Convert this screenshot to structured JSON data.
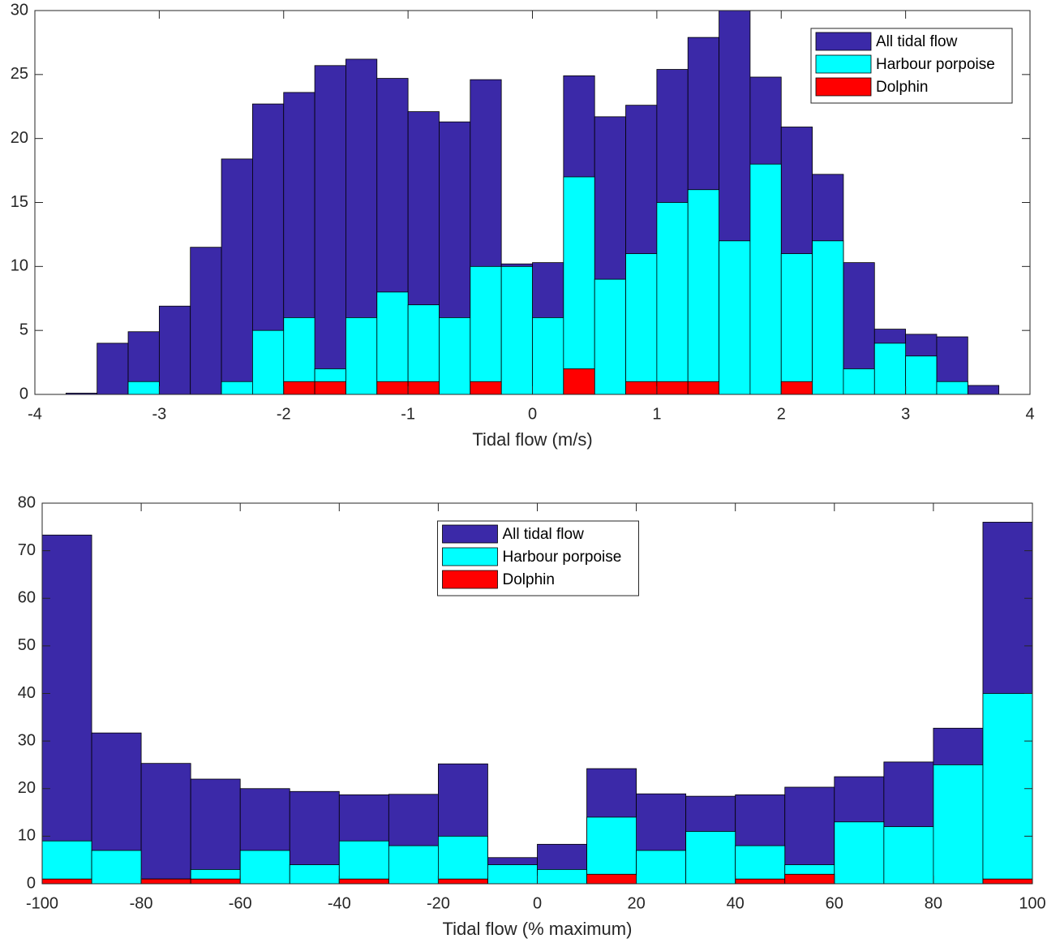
{
  "chart_data": [
    {
      "type": "histogram",
      "xlabel": "Tidal flow (m/s)",
      "legend": "northeast",
      "bins": [
        -3.75,
        -3.5,
        -3.25,
        -3,
        -2.75,
        -2.5,
        -2.25,
        -2,
        -1.75,
        -1.5,
        -1.25,
        -1,
        -0.75,
        -0.5,
        -0.25,
        0,
        0.25,
        0.5,
        0.75,
        1,
        1.25,
        1.5,
        1.75,
        2,
        2.25,
        2.5,
        2.75,
        3,
        3.25,
        3.5,
        3.75
      ],
      "series": [
        {
          "name": "All tidal flow",
          "color": "#3b29a8",
          "values": [
            0.1,
            4.0,
            4.9,
            6.9,
            11.5,
            18.4,
            22.7,
            23.6,
            25.7,
            26.2,
            24.7,
            22.1,
            21.3,
            24.6,
            10.2,
            10.3,
            24.9,
            21.7,
            22.6,
            25.4,
            27.9,
            30,
            24.8,
            20.9,
            17.2,
            10.3,
            5.1,
            4.7,
            4.5,
            0.7
          ]
        },
        {
          "name": "Harbour porpoise",
          "color": "#00ffff",
          "values": [
            0,
            0,
            1,
            0,
            0,
            1,
            5,
            6,
            2,
            6,
            8,
            7,
            6,
            10,
            10,
            6,
            17,
            9,
            11,
            15,
            16,
            12,
            18,
            11,
            12,
            2,
            4,
            3,
            1,
            0
          ]
        },
        {
          "name": "Dolphin",
          "color": "#ff0000",
          "values": [
            0,
            0,
            0,
            0,
            0,
            0,
            0,
            1,
            1,
            0,
            1,
            1,
            0,
            1,
            0,
            0,
            2,
            0,
            1,
            1,
            1,
            0,
            0,
            1,
            0,
            0,
            0,
            0,
            0,
            0
          ]
        }
      ],
      "xlim": [
        -4,
        4
      ],
      "xticks": [
        -4,
        -3,
        -2,
        -1,
        0,
        1,
        2,
        3,
        4
      ],
      "ylim": [
        0,
        30
      ],
      "yticks": [
        0,
        5,
        10,
        15,
        20,
        25,
        30
      ]
    },
    {
      "type": "histogram",
      "xlabel": "Tidal flow (% maximum)",
      "legend": "north",
      "bins": [
        -100,
        -90,
        -80,
        -70,
        -60,
        -50,
        -40,
        -30,
        -20,
        -10,
        0,
        10,
        20,
        30,
        40,
        50,
        60,
        70,
        80,
        90,
        100
      ],
      "series": [
        {
          "name": "All tidal flow",
          "color": "#3b29a8",
          "values": [
            73.3,
            31.7,
            25.3,
            22,
            20,
            19.4,
            18.7,
            18.8,
            25.2,
            5.5,
            8.3,
            24.2,
            18.9,
            18.4,
            18.7,
            20.3,
            22.5,
            25.6,
            32.7,
            76
          ]
        },
        {
          "name": "Harbour porpoise",
          "color": "#00ffff",
          "values": [
            9,
            7,
            1,
            3,
            7,
            4,
            9,
            8,
            10,
            4,
            3,
            14,
            7,
            11,
            8,
            4,
            13,
            12,
            25,
            40
          ]
        },
        {
          "name": "Dolphin",
          "color": "#ff0000",
          "values": [
            1,
            0,
            1,
            1,
            0,
            0,
            1,
            0,
            1,
            0,
            0,
            2,
            0,
            0,
            1,
            2,
            0,
            0,
            0,
            1
          ]
        }
      ],
      "xlim": [
        -100,
        100
      ],
      "xticks": [
        -100,
        -80,
        -60,
        -40,
        -20,
        0,
        20,
        40,
        60,
        80,
        100
      ],
      "ylim": [
        0,
        80
      ],
      "yticks": [
        0,
        10,
        20,
        30,
        40,
        50,
        60,
        70,
        80
      ]
    }
  ]
}
